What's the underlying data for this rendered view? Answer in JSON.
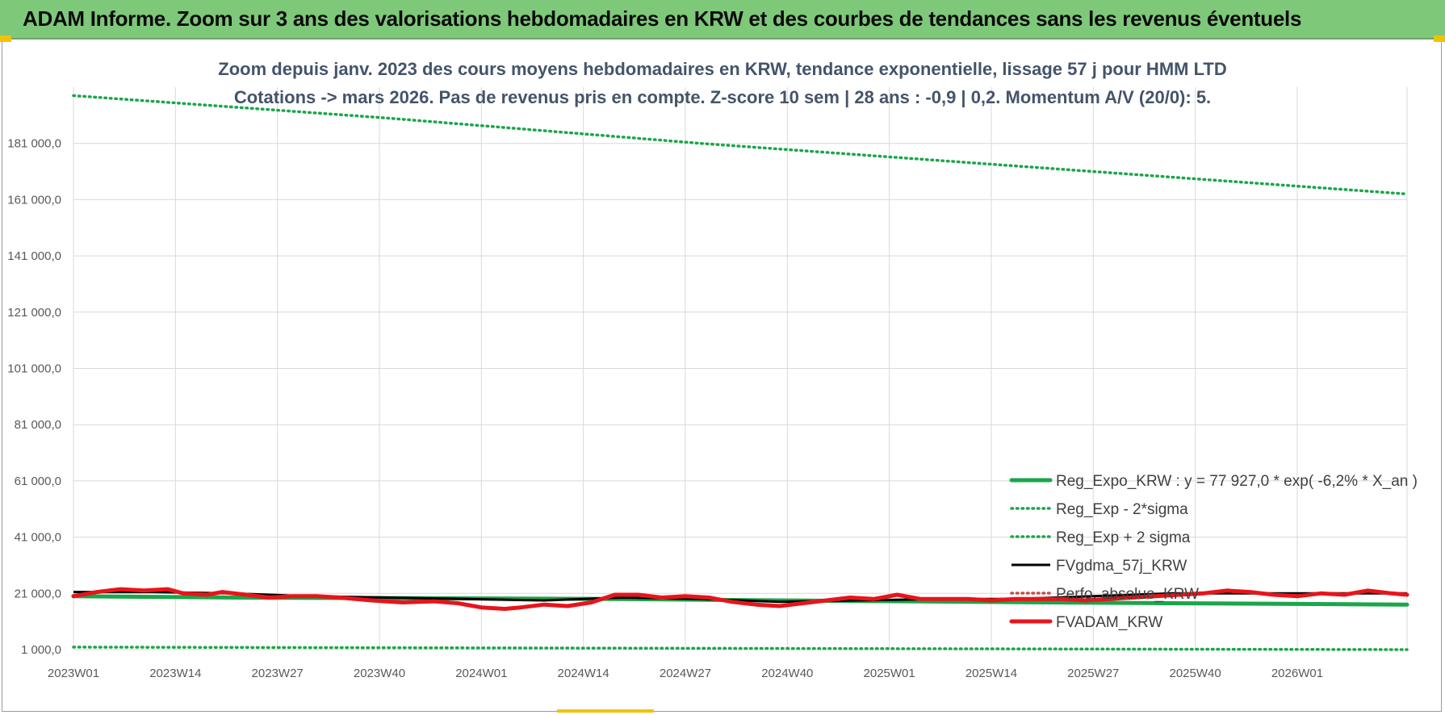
{
  "banner": {
    "title": "ADAM Informe. Zoom sur 3 ans des valorisations hebdomadaires en KRW et des courbes de tendances sans les revenus éventuels"
  },
  "colors": {
    "banner_bg": "#7ec87a",
    "reg_expo": "#1aa64a",
    "sigma_lines": "#1aa64a",
    "fvgdma": "#000000",
    "perfo": "#c0504d",
    "fvadam": "#e8141b",
    "title_text": "#44546a"
  },
  "chart_data": {
    "type": "line",
    "title_lines": [
      "Zoom depuis janv. 2023 des cours moyens hebdomadaires en KRW, tendance exponentielle, lissage 57 j pour HMM LTD",
      "Cotations -> mars 2026. Pas de revenus pris en compte. Z-score 10 sem | 28 ans : -0,9 | 0,2. Momentum A/V (20/0): 5."
    ],
    "y_ticks": [
      "1 000,0",
      "21 000,0",
      "41 000,0",
      "61 000,0",
      "81 000,0",
      "101 000,0",
      "121 000,0",
      "141 000,0",
      "161 000,0",
      "181 000,0"
    ],
    "y_tick_values": [
      1000,
      21000,
      41000,
      61000,
      81000,
      101000,
      121000,
      141000,
      161000,
      181000
    ],
    "ylim": [
      1000,
      201000
    ],
    "x_ticks": [
      "2023W01",
      "2023W14",
      "2023W27",
      "2023W40",
      "2024W01",
      "2024W14",
      "2024W27",
      "2024W40",
      "2025W01",
      "2025W14",
      "2025W27",
      "2025W40",
      "2026W01"
    ],
    "week_count": 171,
    "grid": true,
    "legend_position": "bottom-right",
    "series": [
      {
        "name": "Reg_Expo_KRW : y = 77 927,0 * exp( -6,2% *  X_an )",
        "style": "solid-thick",
        "color": "#1aa64a",
        "points": [
          [
            0,
            20000
          ],
          [
            21,
            19500
          ],
          [
            70,
            19000
          ],
          [
            90,
            18500
          ],
          [
            140,
            17500
          ],
          [
            170,
            17000
          ]
        ]
      },
      {
        "name": "Reg_Exp - 2*sigma",
        "style": "dotted",
        "color": "#1aa64a",
        "points": [
          [
            0,
            1900
          ],
          [
            170,
            1000
          ]
        ]
      },
      {
        "name": "Reg_Exp + 2 sigma",
        "style": "dotted",
        "color": "#1aa64a",
        "points": [
          [
            0,
            198000
          ],
          [
            40,
            190000
          ],
          [
            80,
            181000
          ],
          [
            120,
            173000
          ],
          [
            170,
            163000
          ]
        ]
      },
      {
        "name": "FVgdma_57j_KRW",
        "style": "solid",
        "color": "#000000",
        "points": [
          [
            0,
            21500
          ],
          [
            10,
            21500
          ],
          [
            20,
            21000
          ],
          [
            30,
            20000
          ],
          [
            40,
            19500
          ],
          [
            50,
            19000
          ],
          [
            60,
            18500
          ],
          [
            70,
            19500
          ],
          [
            80,
            19000
          ],
          [
            90,
            18000
          ],
          [
            100,
            18500
          ],
          [
            110,
            19000
          ],
          [
            120,
            19000
          ],
          [
            130,
            20000
          ],
          [
            140,
            21000
          ],
          [
            150,
            21000
          ],
          [
            170,
            21000
          ]
        ]
      },
      {
        "name": "Perfo. absolue_KRW",
        "style": "dotted",
        "color": "#c0504d",
        "points": []
      },
      {
        "name": "FVADAM_KRW",
        "style": "solid-thick",
        "color": "#e8141b",
        "points": [
          [
            0,
            20000
          ],
          [
            3,
            21500
          ],
          [
            6,
            22500
          ],
          [
            9,
            22000
          ],
          [
            12,
            22500
          ],
          [
            14,
            21000
          ],
          [
            17,
            20500
          ],
          [
            19,
            21500
          ],
          [
            22,
            20500
          ],
          [
            25,
            19500
          ],
          [
            28,
            20000
          ],
          [
            31,
            20000
          ],
          [
            34,
            19500
          ],
          [
            38,
            18500
          ],
          [
            42,
            17800
          ],
          [
            46,
            18200
          ],
          [
            49,
            17500
          ],
          [
            52,
            16000
          ],
          [
            55,
            15500
          ],
          [
            57,
            16000
          ],
          [
            60,
            17000
          ],
          [
            63,
            16500
          ],
          [
            66,
            17800
          ],
          [
            69,
            20500
          ],
          [
            72,
            20500
          ],
          [
            75,
            19500
          ],
          [
            78,
            20000
          ],
          [
            81,
            19500
          ],
          [
            84,
            18000
          ],
          [
            87,
            17000
          ],
          [
            90,
            16500
          ],
          [
            93,
            17500
          ],
          [
            96,
            18500
          ],
          [
            99,
            19500
          ],
          [
            102,
            19000
          ],
          [
            105,
            20500
          ],
          [
            108,
            19000
          ],
          [
            111,
            19000
          ],
          [
            114,
            19000
          ],
          [
            117,
            18500
          ],
          [
            120,
            19000
          ],
          [
            123,
            19000
          ],
          [
            126,
            19000
          ],
          [
            129,
            18500
          ],
          [
            132,
            19000
          ],
          [
            135,
            19500
          ],
          [
            138,
            20000
          ],
          [
            141,
            20500
          ],
          [
            144,
            21000
          ],
          [
            147,
            22000
          ],
          [
            150,
            21500
          ],
          [
            153,
            20500
          ],
          [
            156,
            20000
          ],
          [
            159,
            21000
          ],
          [
            162,
            20500
          ],
          [
            165,
            22000
          ],
          [
            168,
            21000
          ],
          [
            170,
            20500
          ]
        ]
      }
    ]
  }
}
